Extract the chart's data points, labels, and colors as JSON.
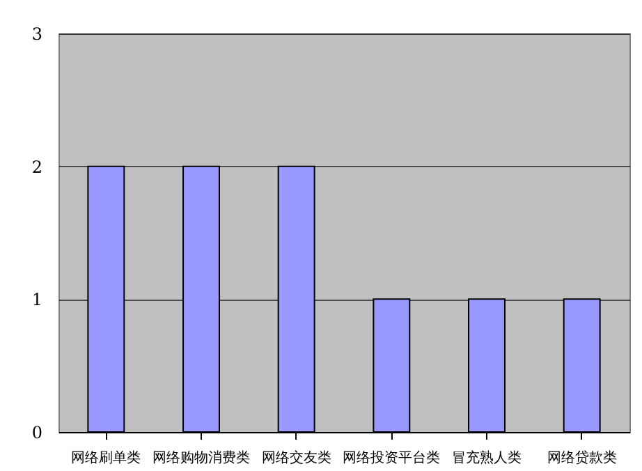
{
  "chart_data": {
    "type": "bar",
    "categories": [
      "网络刷单类",
      "网络购物消费类",
      "网络交友类",
      "网络投资平台类",
      "冒充熟人类",
      "网络贷款类"
    ],
    "values": [
      2,
      2,
      2,
      1,
      1,
      1
    ],
    "color": "#9999ff",
    "ylim": [
      0,
      3
    ],
    "yticks": [
      0,
      1,
      2,
      3
    ],
    "grid": "y"
  }
}
